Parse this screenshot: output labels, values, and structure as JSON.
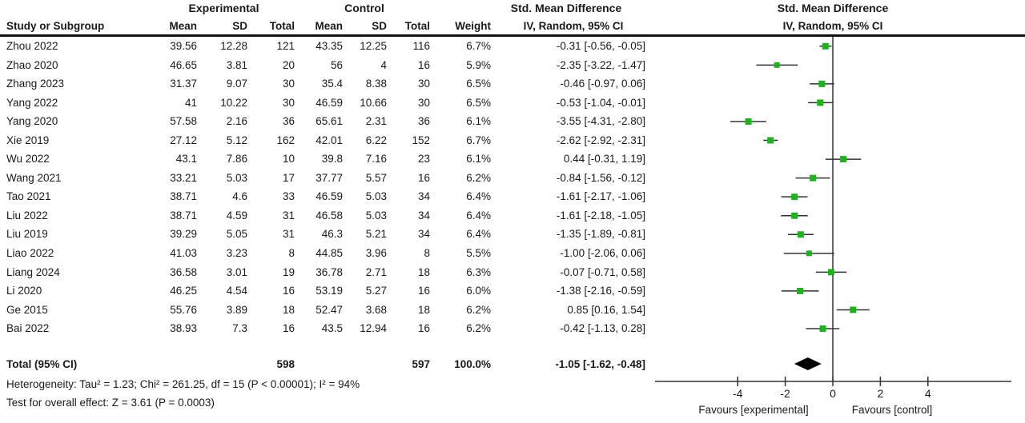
{
  "header": {
    "group_experimental": "Experimental",
    "group_control": "Control",
    "smd_text_title": "Std. Mean Difference",
    "smd_plot_title": "Std. Mean Difference",
    "columns": {
      "study": "Study or Subgroup",
      "mean": "Mean",
      "sd": "SD",
      "total": "Total",
      "weight": "Weight",
      "ci": "IV, Random, 95% CI"
    }
  },
  "chart_data": {
    "type": "forest",
    "effect_measure": "Std. Mean Difference",
    "model": "IV, Random, 95% CI",
    "axis": {
      "ticks": [
        -4,
        -2,
        0,
        2,
        4
      ],
      "xlim": [
        -7.5,
        7.5
      ],
      "zero_line": 0
    },
    "favours_left": "Favours [experimental]",
    "favours_right": "Favours [control]",
    "marker_color": "#1db31d",
    "line_color": "#333333",
    "diamond_color": "#000000",
    "studies": [
      {
        "study": "Zhou 2022",
        "exp_mean": "39.56",
        "exp_sd": "12.28",
        "exp_total": "121",
        "ctl_mean": "43.35",
        "ctl_sd": "12.25",
        "ctl_total": "116",
        "weight": "6.7%",
        "ci_label": "-0.31 [-0.56, -0.05]",
        "est": -0.31,
        "lo": -0.56,
        "hi": -0.05
      },
      {
        "study": "Zhao 2020",
        "exp_mean": "46.65",
        "exp_sd": "3.81",
        "exp_total": "20",
        "ctl_mean": "56",
        "ctl_sd": "4",
        "ctl_total": "16",
        "weight": "5.9%",
        "ci_label": "-2.35 [-3.22, -1.47]",
        "est": -2.35,
        "lo": -3.22,
        "hi": -1.47
      },
      {
        "study": "Zhang 2023",
        "exp_mean": "31.37",
        "exp_sd": "9.07",
        "exp_total": "30",
        "ctl_mean": "35.4",
        "ctl_sd": "8.38",
        "ctl_total": "30",
        "weight": "6.5%",
        "ci_label": "-0.46 [-0.97, 0.06]",
        "est": -0.46,
        "lo": -0.97,
        "hi": 0.06
      },
      {
        "study": "Yang 2022",
        "exp_mean": "41",
        "exp_sd": "10.22",
        "exp_total": "30",
        "ctl_mean": "46.59",
        "ctl_sd": "10.66",
        "ctl_total": "30",
        "weight": "6.5%",
        "ci_label": "-0.53 [-1.04, -0.01]",
        "est": -0.53,
        "lo": -1.04,
        "hi": -0.01
      },
      {
        "study": "Yang 2020",
        "exp_mean": "57.58",
        "exp_sd": "2.16",
        "exp_total": "36",
        "ctl_mean": "65.61",
        "ctl_sd": "2.31",
        "ctl_total": "36",
        "weight": "6.1%",
        "ci_label": "-3.55 [-4.31, -2.80]",
        "est": -3.55,
        "lo": -4.31,
        "hi": -2.8
      },
      {
        "study": "Xie 2019",
        "exp_mean": "27.12",
        "exp_sd": "5.12",
        "exp_total": "162",
        "ctl_mean": "42.01",
        "ctl_sd": "6.22",
        "ctl_total": "152",
        "weight": "6.7%",
        "ci_label": "-2.62 [-2.92, -2.31]",
        "est": -2.62,
        "lo": -2.92,
        "hi": -2.31
      },
      {
        "study": "Wu 2022",
        "exp_mean": "43.1",
        "exp_sd": "7.86",
        "exp_total": "10",
        "ctl_mean": "39.8",
        "ctl_sd": "7.16",
        "ctl_total": "23",
        "weight": "6.1%",
        "ci_label": "0.44 [-0.31, 1.19]",
        "est": 0.44,
        "lo": -0.31,
        "hi": 1.19
      },
      {
        "study": "Wang 2021",
        "exp_mean": "33.21",
        "exp_sd": "5.03",
        "exp_total": "17",
        "ctl_mean": "37.77",
        "ctl_sd": "5.57",
        "ctl_total": "16",
        "weight": "6.2%",
        "ci_label": "-0.84 [-1.56, -0.12]",
        "est": -0.84,
        "lo": -1.56,
        "hi": -0.12
      },
      {
        "study": "Tao 2021",
        "exp_mean": "38.71",
        "exp_sd": "4.6",
        "exp_total": "33",
        "ctl_mean": "46.59",
        "ctl_sd": "5.03",
        "ctl_total": "34",
        "weight": "6.4%",
        "ci_label": "-1.61 [-2.17, -1.06]",
        "est": -1.61,
        "lo": -2.17,
        "hi": -1.06
      },
      {
        "study": "Liu 2022",
        "exp_mean": "38.71",
        "exp_sd": "4.59",
        "exp_total": "31",
        "ctl_mean": "46.58",
        "ctl_sd": "5.03",
        "ctl_total": "34",
        "weight": "6.4%",
        "ci_label": "-1.61 [-2.18, -1.05]",
        "est": -1.61,
        "lo": -2.18,
        "hi": -1.05
      },
      {
        "study": "Liu 2019",
        "exp_mean": "39.29",
        "exp_sd": "5.05",
        "exp_total": "31",
        "ctl_mean": "46.3",
        "ctl_sd": "5.21",
        "ctl_total": "34",
        "weight": "6.4%",
        "ci_label": "-1.35 [-1.89, -0.81]",
        "est": -1.35,
        "lo": -1.89,
        "hi": -0.81
      },
      {
        "study": "Liao 2022",
        "exp_mean": "41.03",
        "exp_sd": "3.23",
        "exp_total": "8",
        "ctl_mean": "44.85",
        "ctl_sd": "3.96",
        "ctl_total": "8",
        "weight": "5.5%",
        "ci_label": "-1.00 [-2.06, 0.06]",
        "est": -1.0,
        "lo": -2.06,
        "hi": 0.06
      },
      {
        "study": "Liang 2024",
        "exp_mean": "36.58",
        "exp_sd": "3.01",
        "exp_total": "19",
        "ctl_mean": "36.78",
        "ctl_sd": "2.71",
        "ctl_total": "18",
        "weight": "6.3%",
        "ci_label": "-0.07 [-0.71, 0.58]",
        "est": -0.07,
        "lo": -0.71,
        "hi": 0.58
      },
      {
        "study": "Li 2020",
        "exp_mean": "46.25",
        "exp_sd": "4.54",
        "exp_total": "16",
        "ctl_mean": "53.19",
        "ctl_sd": "5.27",
        "ctl_total": "16",
        "weight": "6.0%",
        "ci_label": "-1.38 [-2.16, -0.59]",
        "est": -1.38,
        "lo": -2.16,
        "hi": -0.59
      },
      {
        "study": "Ge 2015",
        "exp_mean": "55.76",
        "exp_sd": "3.89",
        "exp_total": "18",
        "ctl_mean": "52.47",
        "ctl_sd": "3.68",
        "ctl_total": "18",
        "weight": "6.2%",
        "ci_label": "0.85 [0.16, 1.54]",
        "est": 0.85,
        "lo": 0.16,
        "hi": 1.54
      },
      {
        "study": "Bai 2022",
        "exp_mean": "38.93",
        "exp_sd": "7.3",
        "exp_total": "16",
        "ctl_mean": "43.5",
        "ctl_sd": "12.94",
        "ctl_total": "16",
        "weight": "6.2%",
        "ci_label": "-0.42 [-1.13, 0.28]",
        "est": -0.42,
        "lo": -1.13,
        "hi": 0.28
      }
    ],
    "total": {
      "label": "Total (95% CI)",
      "exp_total": "598",
      "ctl_total": "597",
      "weight": "100.0%",
      "ci_label": "-1.05 [-1.62, -0.48]",
      "est": -1.05,
      "lo": -1.62,
      "hi": -0.48
    },
    "heterogeneity": "Heterogeneity: Tau² = 1.23; Chi² = 261.25, df = 15 (P < 0.00001); I² = 94%",
    "overall_effect": "Test for overall effect: Z = 3.61 (P = 0.0003)"
  }
}
